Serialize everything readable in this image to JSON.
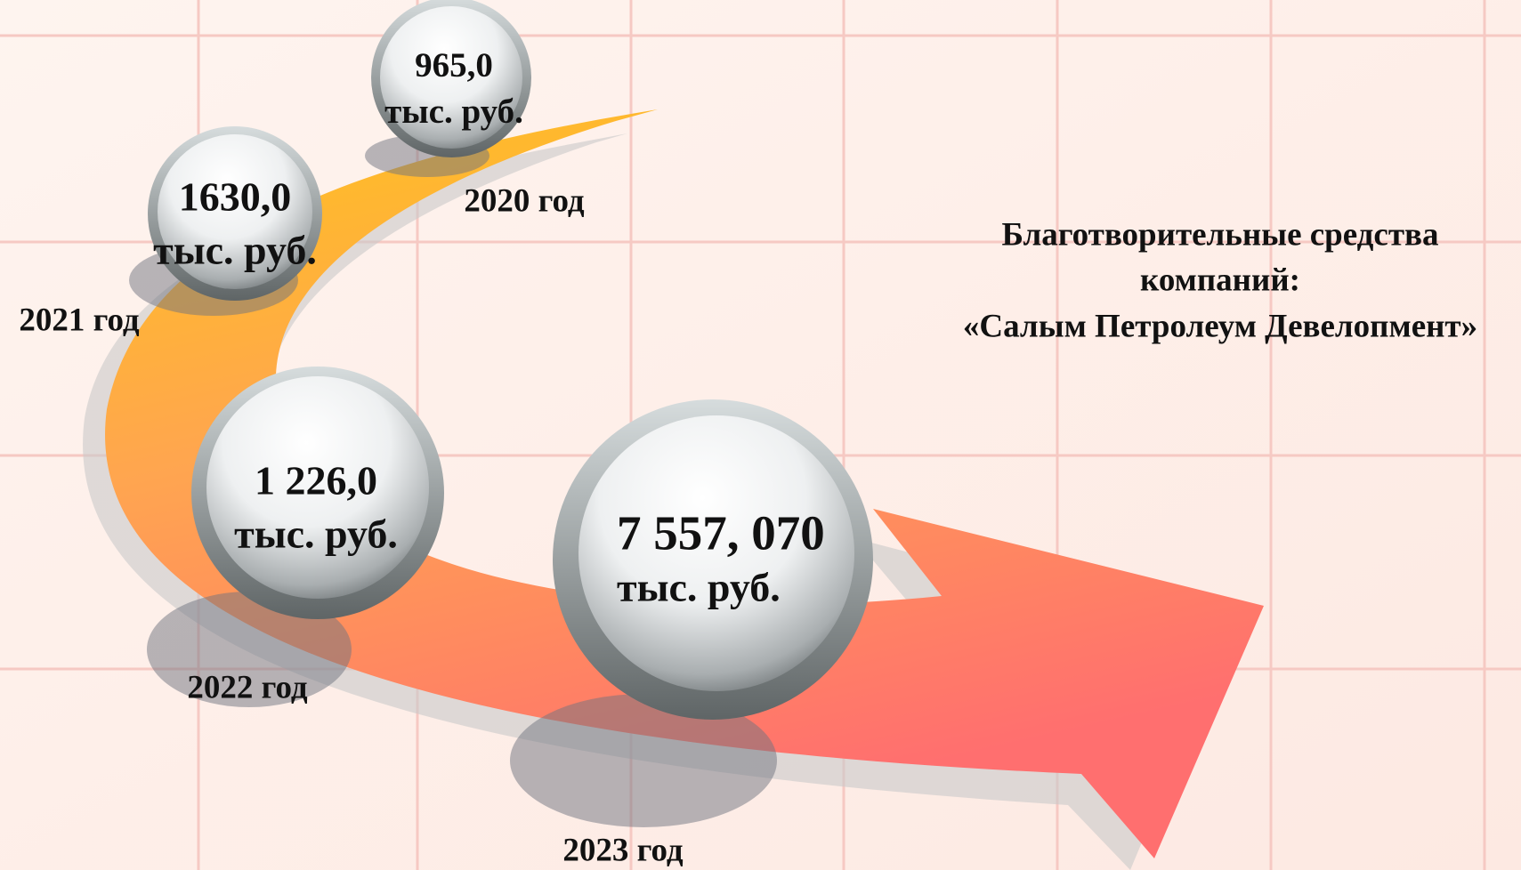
{
  "title": {
    "lines": [
      "Благотворительные средства",
      "компаний:",
      "«Салым Петролеум Девелопмент»"
    ]
  },
  "items": [
    {
      "amount": "965,0",
      "unit": "тыс. руб.",
      "year": "2020 год"
    },
    {
      "amount": "1630,0",
      "unit": "тыс. руб.",
      "year": "2021 год"
    },
    {
      "amount": "1 226,0",
      "unit": "тыс. руб.",
      "year": "2022 год"
    },
    {
      "amount": "7 557, 070",
      "unit": "тыс. руб.",
      "year": "2023 год"
    }
  ]
}
